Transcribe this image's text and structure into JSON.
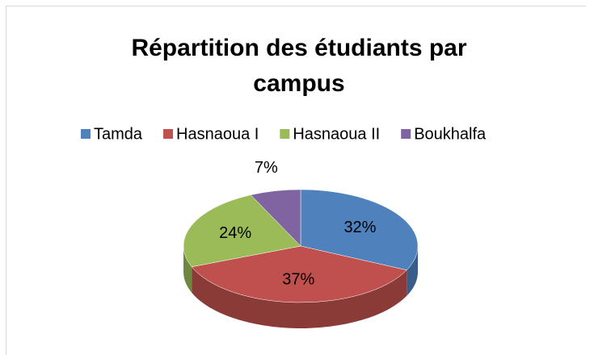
{
  "chart_data": {
    "type": "pie",
    "title": "Répartition des étudiants par campus",
    "categories": [
      "Tamda",
      "Hasnaoua I",
      "Hasnaoua II",
      "Boukhalfa"
    ],
    "values": [
      32,
      37,
      24,
      7
    ],
    "value_labels": [
      "32%",
      "37%",
      "24%",
      "7%"
    ],
    "colors": [
      "#4f81bd",
      "#c0504d",
      "#9bbb59",
      "#8064a2"
    ],
    "legend": "top"
  }
}
